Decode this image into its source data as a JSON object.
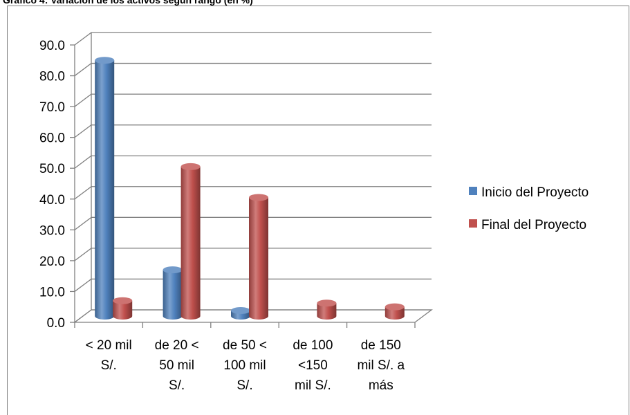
{
  "page": {
    "title": "Gráfico 4:  Variación de los activos según rango (en %)"
  },
  "chart_data": {
    "type": "bar",
    "ylim": [
      0,
      90
    ],
    "yticks": [
      "0.0",
      "10.0",
      "20.0",
      "30.0",
      "40.0",
      "50.0",
      "60.0",
      "70.0",
      "80.0",
      "90.0"
    ],
    "categories": [
      [
        "< 20 mil",
        "S/."
      ],
      [
        "de 20 <",
        "50 mil",
        "S/."
      ],
      [
        "de 50 <",
        "100 mil",
        "S/."
      ],
      [
        "de 100",
        "<150",
        "mil S/."
      ],
      [
        "de 150",
        "mil S/. a",
        "más"
      ]
    ],
    "series": [
      {
        "name": "Inicio del Proyecto",
        "color": "#4f81bd",
        "values": [
          83.0,
          15.0,
          1.8,
          0,
          0
        ]
      },
      {
        "name": "Final del Proyecto",
        "color": "#c0504d",
        "values": [
          5.0,
          48.5,
          38.5,
          4.2,
          3.0
        ]
      }
    ],
    "legend_position": "right",
    "grid": true,
    "style": "3d-cylinder"
  }
}
